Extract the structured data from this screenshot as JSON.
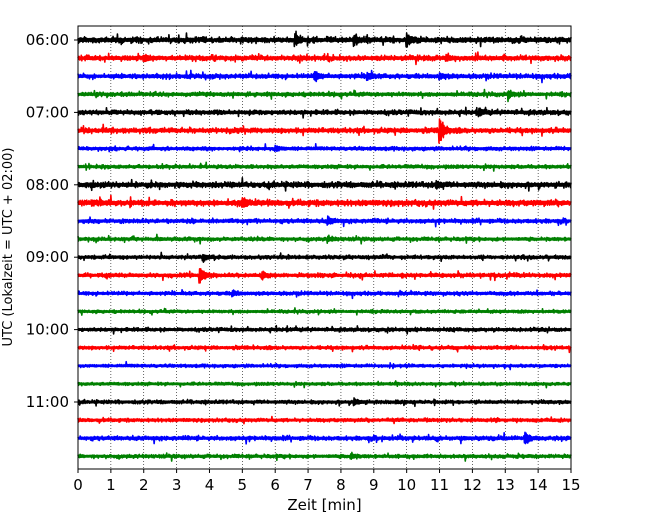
{
  "chart_data": {
    "type": "line",
    "xlabel": "Zeit  [min]",
    "ylabel": "UTC (Lokalzeit = UTC + 02:00)",
    "xlim": [
      0,
      15
    ],
    "x_ticks": [
      "0",
      "1",
      "2",
      "3",
      "4",
      "5",
      "6",
      "7",
      "8",
      "9",
      "10",
      "11",
      "12",
      "13",
      "14",
      "15"
    ],
    "y_tick_labels": [
      "06:00",
      "07:00",
      "08:00",
      "09:00",
      "10:00",
      "11:00"
    ],
    "grid": "vertical-dotted",
    "trace_colors": [
      "#000000",
      "#ff0000",
      "#0000ff",
      "#008000"
    ],
    "traces": [
      {
        "start": "06:00",
        "color": "#000000",
        "amp": 0.55,
        "events": [
          {
            "t": 6.6,
            "a": 0.9
          },
          {
            "t": 8.4,
            "a": 0.9
          },
          {
            "t": 10.0,
            "a": 1.0
          }
        ]
      },
      {
        "start": "06:15",
        "color": "#ff0000",
        "amp": 0.5,
        "events": [
          {
            "t": 2.0,
            "a": 0.6
          },
          {
            "t": 11.2,
            "a": 0.5
          }
        ]
      },
      {
        "start": "06:30",
        "color": "#0000ff",
        "amp": 0.45,
        "events": [
          {
            "t": 7.2,
            "a": 0.8
          },
          {
            "t": 8.8,
            "a": 0.7
          },
          {
            "t": 11.0,
            "a": 0.5
          }
        ]
      },
      {
        "start": "06:45",
        "color": "#008000",
        "amp": 0.4,
        "events": [
          {
            "t": 13.1,
            "a": 0.6
          }
        ]
      },
      {
        "start": "07:00",
        "color": "#000000",
        "amp": 0.45,
        "events": [
          {
            "t": 12.2,
            "a": 0.6
          }
        ]
      },
      {
        "start": "07:15",
        "color": "#ff0000",
        "amp": 0.5,
        "events": [
          {
            "t": 11.0,
            "a": 2.5
          }
        ]
      },
      {
        "start": "07:30",
        "color": "#0000ff",
        "amp": 0.35,
        "events": [
          {
            "t": 6.0,
            "a": 0.5
          }
        ]
      },
      {
        "start": "07:45",
        "color": "#008000",
        "amp": 0.35,
        "events": []
      },
      {
        "start": "08:00",
        "color": "#000000",
        "amp": 0.55,
        "events": [
          {
            "t": 10.9,
            "a": 0.6
          }
        ]
      },
      {
        "start": "08:15",
        "color": "#ff0000",
        "amp": 0.6,
        "events": [
          {
            "t": 5.0,
            "a": 0.8
          }
        ]
      },
      {
        "start": "08:30",
        "color": "#0000ff",
        "amp": 0.4,
        "events": [
          {
            "t": 7.6,
            "a": 0.6
          }
        ]
      },
      {
        "start": "08:45",
        "color": "#008000",
        "amp": 0.35,
        "events": [
          {
            "t": 7.6,
            "a": 0.5
          }
        ]
      },
      {
        "start": "09:00",
        "color": "#000000",
        "amp": 0.35,
        "events": [
          {
            "t": 3.8,
            "a": 0.6
          }
        ]
      },
      {
        "start": "09:15",
        "color": "#ff0000",
        "amp": 0.4,
        "events": [
          {
            "t": 3.7,
            "a": 1.6
          },
          {
            "t": 5.6,
            "a": 0.6
          }
        ]
      },
      {
        "start": "09:30",
        "color": "#0000ff",
        "amp": 0.35,
        "events": [
          {
            "t": 4.7,
            "a": 0.5
          }
        ]
      },
      {
        "start": "09:45",
        "color": "#008000",
        "amp": 0.3,
        "events": []
      },
      {
        "start": "10:00",
        "color": "#000000",
        "amp": 0.35,
        "events": []
      },
      {
        "start": "10:15",
        "color": "#ff0000",
        "amp": 0.35,
        "events": []
      },
      {
        "start": "10:30",
        "color": "#0000ff",
        "amp": 0.3,
        "events": []
      },
      {
        "start": "10:45",
        "color": "#008000",
        "amp": 0.3,
        "events": []
      },
      {
        "start": "11:00",
        "color": "#000000",
        "amp": 0.35,
        "events": [
          {
            "t": 8.4,
            "a": 0.6
          }
        ]
      },
      {
        "start": "11:15",
        "color": "#ff0000",
        "amp": 0.35,
        "events": []
      },
      {
        "start": "11:30",
        "color": "#0000ff",
        "amp": 0.4,
        "events": [
          {
            "t": 13.6,
            "a": 1.2
          }
        ]
      },
      {
        "start": "11:45",
        "color": "#008000",
        "amp": 0.35,
        "events": [
          {
            "t": 8.3,
            "a": 0.5
          }
        ]
      }
    ]
  }
}
